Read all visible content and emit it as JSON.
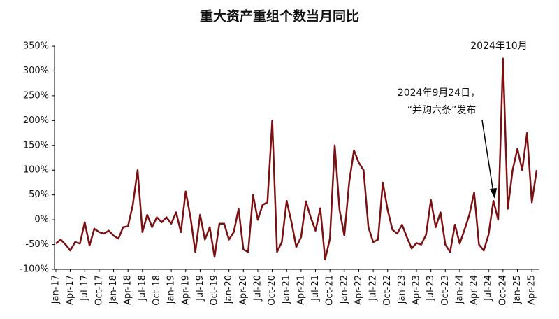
{
  "chart_data": {
    "type": "line",
    "title": "重大资产重组个数当月同比",
    "categories": [
      "Jan-17",
      null,
      null,
      "Apr-17",
      null,
      null,
      "Jul-17",
      null,
      null,
      "Oct-17",
      null,
      null,
      "Jan-18",
      null,
      null,
      "Apr-18",
      null,
      null,
      "Jul-18",
      null,
      null,
      "Oct-18",
      null,
      null,
      "Jan-19",
      null,
      null,
      "Apr-19",
      null,
      null,
      "Jul-19",
      null,
      null,
      "Oct-19",
      null,
      null,
      "Jan-20",
      null,
      null,
      "Apr-20",
      null,
      null,
      "Jul-20",
      null,
      null,
      "Oct-20",
      null,
      null,
      "Jan-21",
      null,
      null,
      "Apr-21",
      null,
      null,
      "Jul-21",
      null,
      null,
      "Oct-21",
      null,
      null,
      "Jan-22",
      null,
      null,
      "Apr-22",
      null,
      null,
      "Jul-22",
      null,
      null,
      "Oct-22",
      null,
      null,
      "Jan-23",
      null,
      null,
      "Apr-23",
      null,
      null,
      "Jul-23",
      null,
      null,
      "Oct-23",
      null,
      null,
      "Jan-24",
      null,
      null,
      "Apr-24",
      null,
      null,
      "Jul-24",
      null,
      null,
      "Oct-24",
      null,
      null,
      "Jan-25",
      null,
      null,
      "Apr-25",
      null
    ],
    "values": [
      -48,
      -40,
      -50,
      -62,
      -45,
      -48,
      -5,
      -52,
      -18,
      -25,
      -28,
      -22,
      -32,
      -38,
      -15,
      -13,
      30,
      100,
      -25,
      10,
      -15,
      5,
      -5,
      5,
      -8,
      15,
      -25,
      57,
      5,
      -65,
      10,
      -40,
      -15,
      -75,
      -8,
      -8,
      -40,
      -25,
      22,
      -60,
      -65,
      50,
      0,
      30,
      35,
      200,
      -65,
      -45,
      38,
      -5,
      -55,
      -35,
      37,
      5,
      -22,
      23,
      -80,
      -38,
      150,
      20,
      -32,
      75,
      140,
      115,
      100,
      -15,
      -45,
      -40,
      75,
      20,
      -20,
      -28,
      -10,
      -35,
      -58,
      -47,
      -50,
      -30,
      40,
      -15,
      15,
      -50,
      -65,
      -10,
      -48,
      -20,
      10,
      55,
      -50,
      -62,
      -30,
      38,
      0,
      325,
      22,
      100,
      143,
      100,
      175,
      35,
      100
    ],
    "color": "#7b1113",
    "ylim": [
      -100,
      350
    ],
    "yticks": [
      {
        "value": -100,
        "label": "-100%"
      },
      {
        "value": -50,
        "label": "-50%"
      },
      {
        "value": 0,
        "label": "0%"
      },
      {
        "value": 50,
        "label": "50%"
      },
      {
        "value": 100,
        "label": "100%"
      },
      {
        "value": 150,
        "label": "150%"
      },
      {
        "value": 200,
        "label": "200%"
      },
      {
        "value": 250,
        "label": "250%"
      },
      {
        "value": 300,
        "label": "300%"
      },
      {
        "value": 350,
        "label": "350%"
      }
    ],
    "annotations": [
      "2024年10月",
      "2024年9月24日，",
      "“并购六条”发布"
    ]
  }
}
